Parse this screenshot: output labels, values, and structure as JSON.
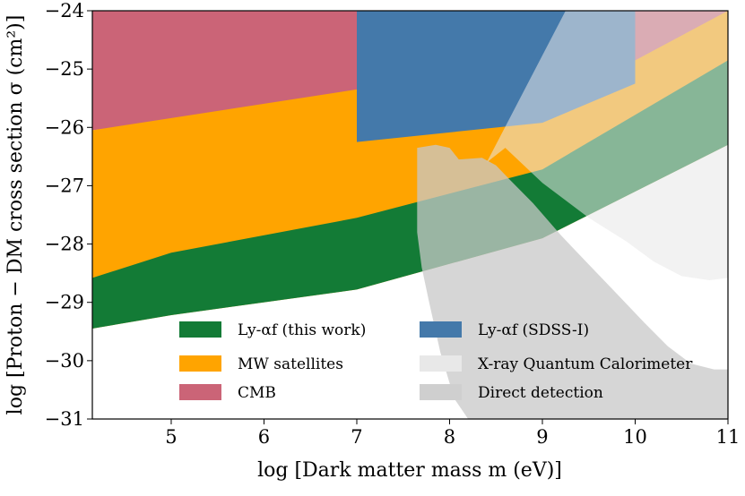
{
  "chart_data": {
    "type": "area",
    "title": "",
    "xlabel": "log [Dark matter mass m (eV)]",
    "ylabel": "log [Proton − DM cross section σ (cm²)]",
    "xlim": [
      4.15,
      11.0
    ],
    "ylim": [
      -31,
      -24
    ],
    "xticks": [
      5,
      6,
      7,
      8,
      9,
      10,
      11
    ],
    "xtick_labels": [
      "5",
      "6",
      "7",
      "8",
      "9",
      "10",
      "11"
    ],
    "yticks": [
      -31,
      -30,
      -29,
      -28,
      -27,
      -26,
      -25,
      -24
    ],
    "ytick_labels": [
      "−31",
      "−30",
      "−29",
      "−28",
      "−27",
      "−26",
      "−25",
      "−24"
    ],
    "legend_position": "lower-center",
    "legend": [
      {
        "label": "Ly-αf (this work)",
        "color": "#137b36"
      },
      {
        "label": "MW satellites",
        "color": "#ffa400"
      },
      {
        "label": "CMB",
        "color": "#cb6477"
      },
      {
        "label": "Ly-αf (SDSS-I)",
        "color": "#4479aa"
      },
      {
        "label": "X-ray Quantum Calorimeter",
        "color": "#e8e8e8"
      },
      {
        "label": "Direct detection",
        "color": "#cfcfcf"
      }
    ],
    "regions": [
      {
        "name": "CMB",
        "color": "#cb6477",
        "opacity": 1,
        "points": [
          [
            4.15,
            -24
          ],
          [
            11,
            -24
          ],
          [
            11,
            -24.7
          ],
          [
            4.15,
            -26.05
          ]
        ]
      },
      {
        "name": "MW satellites",
        "color": "#ffa400",
        "opacity": 1,
        "points": [
          [
            4.15,
            -26.05
          ],
          [
            7,
            -25.35
          ],
          [
            9,
            -25.2
          ],
          [
            10,
            -24.85
          ],
          [
            11,
            -24.0
          ],
          [
            11,
            -26.3
          ],
          [
            9,
            -27.9
          ],
          [
            7,
            -28.78
          ],
          [
            5,
            -29.22
          ],
          [
            4.15,
            -29.45
          ]
        ]
      },
      {
        "name": "Ly-αf (this work)",
        "color": "#137b36",
        "opacity": 1,
        "points": [
          [
            4.15,
            -28.58
          ],
          [
            5,
            -28.15
          ],
          [
            7,
            -27.55
          ],
          [
            9,
            -26.72
          ],
          [
            11,
            -24.85
          ],
          [
            11,
            -26.3
          ],
          [
            9,
            -27.9
          ],
          [
            7,
            -28.78
          ],
          [
            5,
            -29.22
          ],
          [
            4.15,
            -29.45
          ]
        ]
      },
      {
        "name": "Ly-αf (SDSS-I)",
        "color": "#4479aa",
        "opacity": 1,
        "points": [
          [
            7,
            -24
          ],
          [
            10,
            -24
          ],
          [
            10,
            -25.25
          ],
          [
            9,
            -25.92
          ],
          [
            7,
            -26.25
          ]
        ]
      },
      {
        "name": "X-ray Quantum Calorimeter",
        "color": "#e8e8e8",
        "opacity": 0.55,
        "points": [
          [
            9.25,
            -24
          ],
          [
            11,
            -24
          ],
          [
            11,
            -28.58
          ],
          [
            10.8,
            -28.62
          ],
          [
            10.5,
            -28.55
          ],
          [
            10.2,
            -28.3
          ],
          [
            9.9,
            -27.95
          ],
          [
            9.5,
            -27.55
          ],
          [
            9.0,
            -26.95
          ],
          [
            8.6,
            -26.35
          ],
          [
            8.4,
            -26.6
          ]
        ]
      },
      {
        "name": "Direct detection",
        "color": "#c8c8c8",
        "opacity": 0.75,
        "points": [
          [
            7.65,
            -26.35
          ],
          [
            7.85,
            -26.3
          ],
          [
            8,
            -26.35
          ],
          [
            8.1,
            -26.55
          ],
          [
            8.35,
            -26.52
          ],
          [
            8.5,
            -26.65
          ],
          [
            8.65,
            -26.9
          ],
          [
            8.9,
            -27.3
          ],
          [
            9.2,
            -27.85
          ],
          [
            9.5,
            -28.35
          ],
          [
            9.8,
            -28.85
          ],
          [
            10.1,
            -29.35
          ],
          [
            10.35,
            -29.75
          ],
          [
            10.6,
            -30.05
          ],
          [
            10.85,
            -30.15
          ],
          [
            11,
            -30.15
          ],
          [
            11,
            -31
          ],
          [
            8.2,
            -31
          ],
          [
            8.05,
            -30.65
          ],
          [
            7.9,
            -29.85
          ],
          [
            7.78,
            -29.0
          ],
          [
            7.7,
            -28.4
          ],
          [
            7.65,
            -27.8
          ]
        ]
      }
    ]
  }
}
